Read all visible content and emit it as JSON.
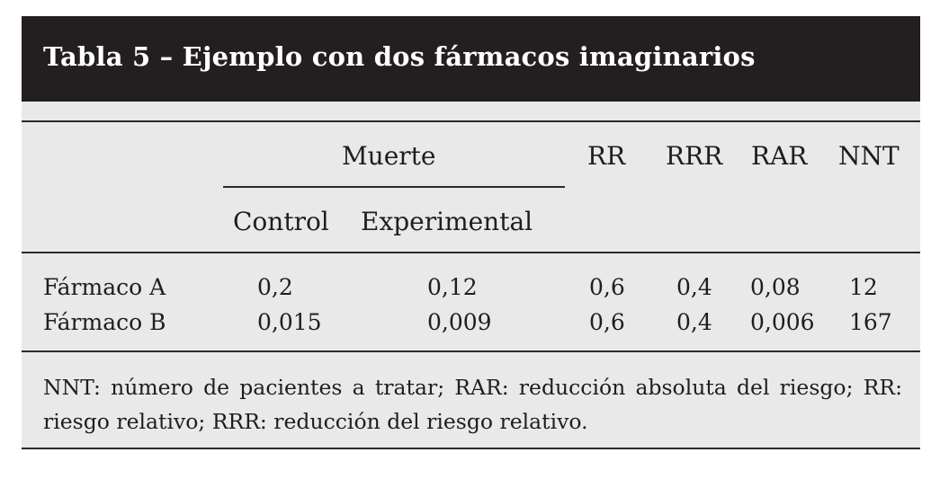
{
  "title": "Tabla 5 – Ejemplo con dos fármacos imaginarios",
  "header": {
    "group_label": "Muerte",
    "control_label": "Control",
    "experimental_label": "Experimental",
    "rr_label": "RR",
    "rrr_label": "RRR",
    "rar_label": "RAR",
    "nnt_label": "NNT"
  },
  "rows": [
    {
      "name": "Fármaco A",
      "control": "0,2",
      "experimental": "0,12",
      "rr": "0,6",
      "rrr": "0,4",
      "rar": "0,08",
      "nnt": "12"
    },
    {
      "name": "Fármaco B",
      "control": "0,015",
      "experimental": "0,009",
      "rr": "0,6",
      "rrr": "0,4",
      "rar": "0,006",
      "nnt": "167"
    }
  ],
  "footnote": "NNT: número de pacientes a tratar; RAR: reducción absoluta del riesgo; RR: riesgo relativo; RRR: reducción del riesgo relativo."
}
